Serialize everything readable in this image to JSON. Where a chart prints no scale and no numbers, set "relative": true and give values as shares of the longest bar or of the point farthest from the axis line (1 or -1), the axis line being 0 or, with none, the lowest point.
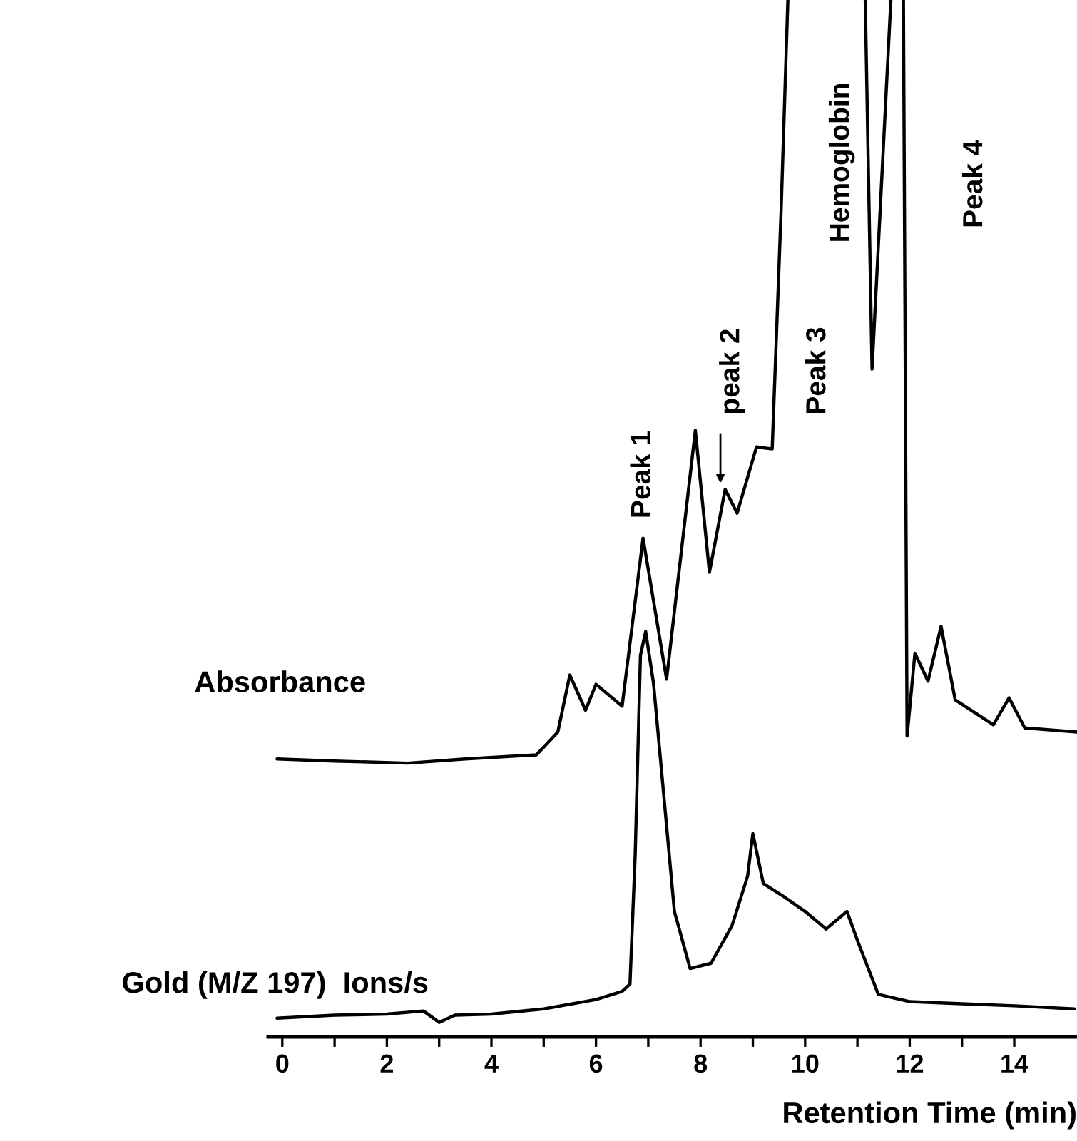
{
  "chart_data": {
    "type": "line",
    "relative": true,
    "xlabel": "Retention Time (min)",
    "xlim": [
      -0.27,
      15.2
    ],
    "xticks": [
      0,
      {
        "value": 1,
        "label": null
      },
      2,
      {
        "value": 3,
        "label": null
      },
      4,
      {
        "value": 5,
        "label": null
      },
      6,
      {
        "value": 7,
        "label": null
      },
      8,
      {
        "value": 9,
        "label": null
      },
      10,
      {
        "value": 11,
        "label": null
      },
      12,
      {
        "value": 13,
        "label": null
      },
      14
    ],
    "tick_labels": "x",
    "grid": false,
    "legend": false,
    "marker": "none",
    "line_style": "solid",
    "series": [
      {
        "name": "Absorbance",
        "color": "#000000",
        "x": [
          -0.1,
          1.0,
          2.4,
          3.5,
          4.86,
          5.27,
          5.5,
          5.8,
          6.0,
          6.5,
          6.9,
          7.35,
          7.9,
          8.17,
          8.47,
          8.7,
          9.07,
          9.37,
          9.54,
          9.67,
          10.5,
          11.15,
          11.28,
          11.64,
          11.75,
          11.88,
          11.95,
          12.1,
          12.35,
          12.6,
          12.87,
          13.6,
          13.9,
          14.2,
          15.2
        ],
        "values": [
          0.268,
          0.266,
          0.264,
          0.268,
          0.272,
          0.294,
          0.349,
          0.315,
          0.34,
          0.319,
          0.481,
          0.345,
          0.585,
          0.448,
          0.528,
          0.505,
          0.569,
          0.567,
          0.796,
          1.0,
          null,
          1.0,
          0.644,
          1.0,
          null,
          1.0,
          0.29,
          0.37,
          0.343,
          0.396,
          0.325,
          0.301,
          0.327,
          0.298,
          0.294
        ]
      },
      {
        "name": "Gold (M/Z 197)  Ions/s",
        "color": "#000000",
        "x": [
          -0.1,
          1,
          2,
          2.7,
          3.0,
          3.3,
          4,
          5,
          6,
          6.5,
          6.65,
          6.75,
          6.85,
          6.95,
          7.1,
          7.3,
          7.5,
          7.8,
          8.2,
          8.6,
          8.9,
          9.0,
          9.2,
          9.6,
          10.0,
          10.4,
          10.8,
          11.0,
          11.4,
          12,
          13,
          14,
          15.15
        ],
        "values": [
          0.018,
          0.021,
          0.022,
          0.025,
          0.014,
          0.021,
          0.022,
          0.027,
          0.036,
          0.044,
          0.051,
          0.176,
          0.368,
          0.391,
          0.341,
          0.231,
          0.121,
          0.066,
          0.071,
          0.107,
          0.155,
          0.196,
          0.148,
          0.135,
          0.121,
          0.104,
          0.121,
          0.093,
          0.041,
          0.034,
          0.032,
          0.03,
          0.027
        ]
      }
    ],
    "annotations": [
      "Peak 1",
      "peak 2",
      "Peak 3",
      "Hemoglobin",
      "Peak 4"
    ]
  }
}
